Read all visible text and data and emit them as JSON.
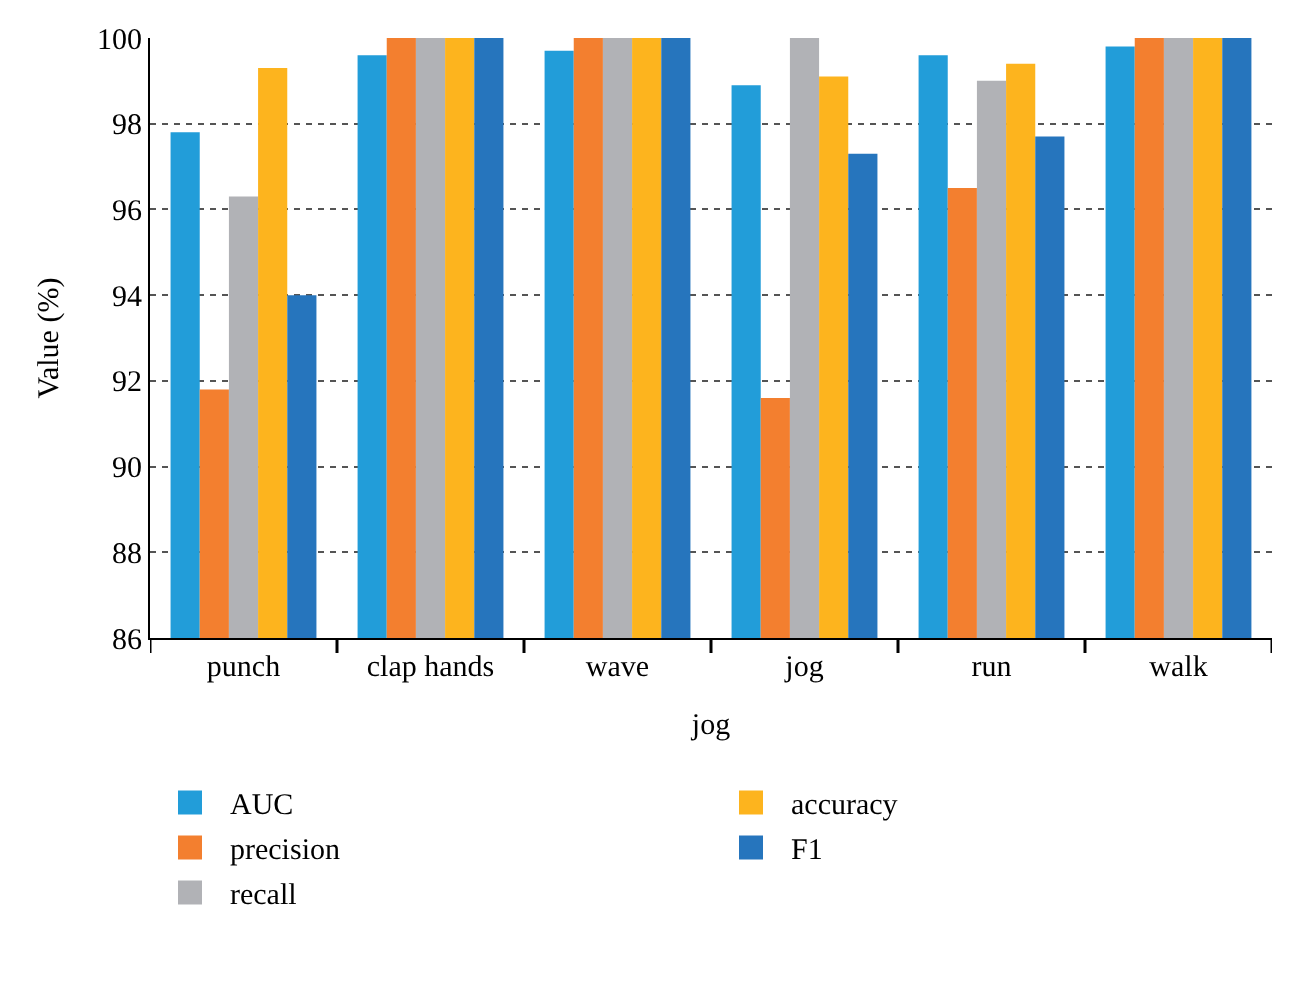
{
  "chart_data": {
    "type": "bar",
    "xlabel": "jog",
    "ylabel": "Value (%)",
    "categories": [
      "punch",
      "clap hands",
      "wave",
      "jog",
      "run",
      "walk"
    ],
    "series": [
      {
        "name": "AUC",
        "color": "#229dd9",
        "values": [
          97.8,
          99.6,
          99.7,
          98.9,
          99.6,
          99.8
        ]
      },
      {
        "name": "precision",
        "color": "#f37f2f",
        "values": [
          91.8,
          100,
          100,
          91.6,
          96.5,
          100
        ]
      },
      {
        "name": "recall",
        "color": "#b1b2b6",
        "values": [
          96.3,
          100,
          100,
          100,
          99.0,
          100
        ]
      },
      {
        "name": "accuracy",
        "color": "#fdb41e",
        "values": [
          99.3,
          100,
          100,
          99.1,
          99.4,
          100
        ]
      },
      {
        "name": "F1",
        "color": "#2675bd",
        "values": [
          94.0,
          100,
          100,
          97.3,
          97.7,
          100
        ]
      }
    ],
    "ylim": [
      86,
      100
    ],
    "yticks": [
      86,
      88,
      90,
      92,
      94,
      96,
      98,
      100
    ],
    "grid": "y",
    "legend": "bottom"
  }
}
